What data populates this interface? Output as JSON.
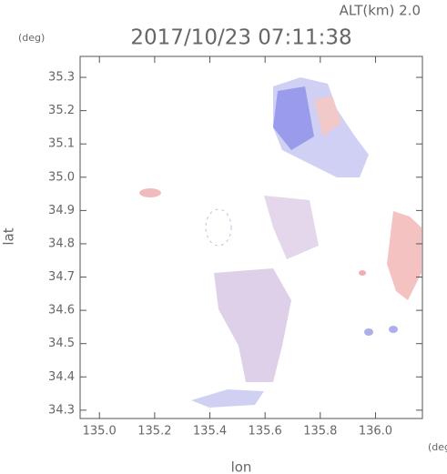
{
  "header": {
    "altitude": "ALT(km) 2.0",
    "unit_top": "(deg)",
    "title": "2017/10/23 07:11:38",
    "unit_bottom": "(deg)"
  },
  "chart_data": {
    "type": "map",
    "xlabel": "lon",
    "ylabel": "lat",
    "xlim": [
      134.93,
      136.17
    ],
    "ylim": [
      34.275,
      35.363
    ],
    "xticks": [
      {
        "value": 135,
        "label": "135.0"
      },
      135.2,
      135.4,
      135.6,
      135.8,
      {
        "value": 136,
        "label": "136.0"
      }
    ],
    "yticks": [
      34.3,
      34.4,
      34.5,
      34.6,
      34.7,
      34.8,
      34.9,
      {
        "value": 35,
        "label": "35.0"
      },
      35.1,
      35.2,
      35.3
    ]
  }
}
